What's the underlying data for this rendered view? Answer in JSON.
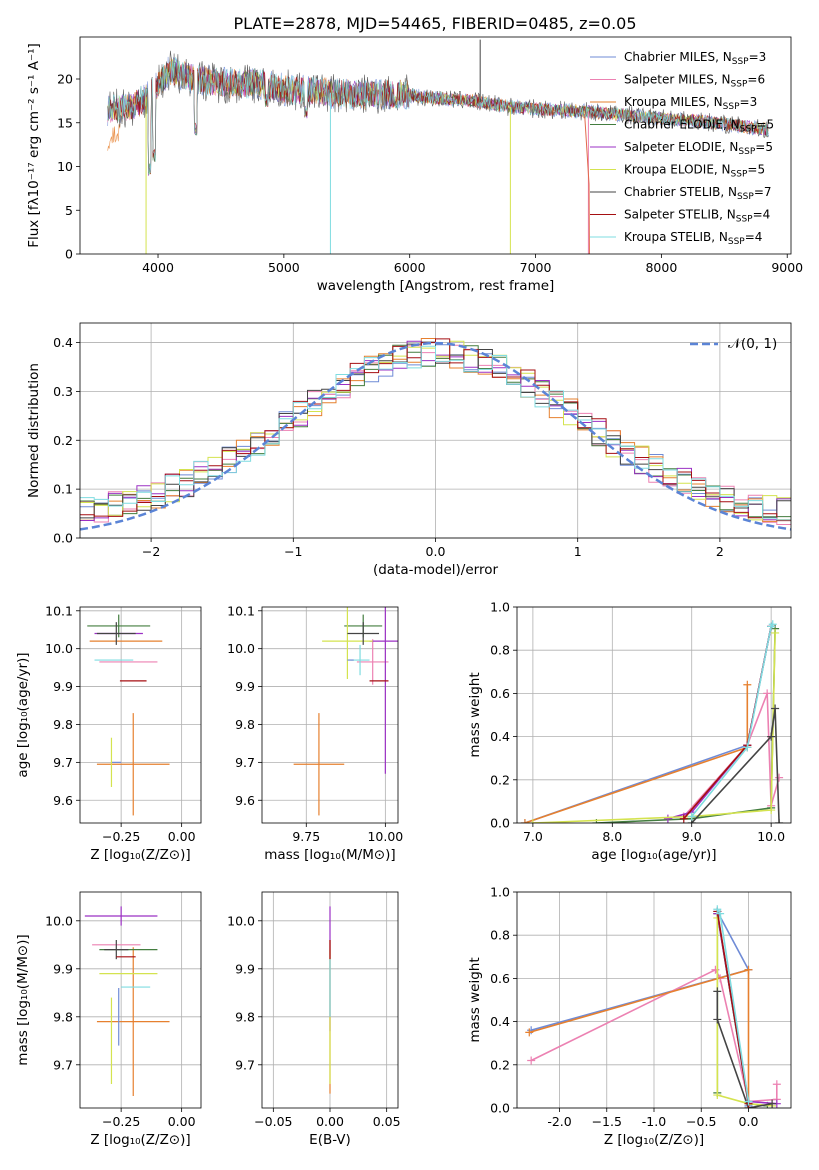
{
  "figure": {
    "title": "PLATE=2878, MJD=54465, FIBERID=0485, z=0.05",
    "models": [
      {
        "name": "Chabrier MILES",
        "nssp": "3",
        "color": "#6f8bd6"
      },
      {
        "name": "Salpeter MILES",
        "nssp": "6",
        "color": "#ec81b2"
      },
      {
        "name": "Kroupa MILES",
        "nssp": "3",
        "color": "#e6802f"
      },
      {
        "name": "Chabrier ELODIE",
        "nssp": "5",
        "color": "#437d3f"
      },
      {
        "name": "Salpeter ELODIE",
        "nssp": "5",
        "color": "#9b30c4"
      },
      {
        "name": "Kroupa ELODIE",
        "nssp": "5",
        "color": "#d4e34f"
      },
      {
        "name": "Chabrier STELIB",
        "nssp": "7",
        "color": "#444444"
      },
      {
        "name": "Salpeter STELIB",
        "nssp": "4",
        "color": "#a50f12"
      },
      {
        "name": "Kroupa STELIB",
        "nssp": "4",
        "color": "#7fdce0"
      }
    ],
    "nssp_label": "N",
    "nssp_sub": "SSP"
  },
  "chart_data": [
    {
      "id": "spectrum",
      "type": "line",
      "xlabel": "wavelength [Angstrom, rest frame]",
      "ylabel": "Flux [fλ10⁻¹⁷ erg cm⁻² s⁻¹ A⁻¹]",
      "xlim": [
        3380,
        9030
      ],
      "ylim": [
        0,
        24.8
      ],
      "xticks": [
        4000,
        5000,
        6000,
        7000,
        8000,
        9000
      ],
      "yticks": [
        0,
        5,
        10,
        15,
        20
      ],
      "data_range": [
        3600,
        8850
      ],
      "continuum": [
        [
          3600,
          16.5
        ],
        [
          3800,
          16.8
        ],
        [
          3950,
          18.5
        ],
        [
          4100,
          21
        ],
        [
          4300,
          20
        ],
        [
          4500,
          19.5
        ],
        [
          4800,
          19.5
        ],
        [
          5000,
          18.8
        ],
        [
          5300,
          18.5
        ],
        [
          5600,
          18.2
        ],
        [
          5900,
          18.3
        ],
        [
          6200,
          17.8
        ],
        [
          6500,
          17.5
        ],
        [
          6800,
          16.8
        ],
        [
          7100,
          16.5
        ],
        [
          7400,
          16.3
        ],
        [
          7700,
          15.9
        ],
        [
          8000,
          15.5
        ],
        [
          8300,
          15.2
        ],
        [
          8600,
          14.7
        ],
        [
          8850,
          14.2
        ]
      ],
      "dips": [
        [
          3934,
          8.9
        ],
        [
          3969,
          10.5
        ],
        [
          4300,
          13.5
        ],
        [
          4861,
          16.8
        ],
        [
          5175,
          15.5
        ],
        [
          5890,
          16.5
        ],
        [
          6563,
          22.0
        ]
      ],
      "spikes": [
        [
          5370,
          0
        ],
        [
          3905,
          0
        ],
        [
          6800,
          0
        ],
        [
          7420,
          0
        ],
        [
          6560,
          24.5
        ]
      ]
    },
    {
      "id": "residual",
      "type": "histogram",
      "xlabel": "(data-model)/error",
      "ylabel": "Normed distribution",
      "xlim": [
        -2.5,
        2.5
      ],
      "ylim": [
        0,
        0.44
      ],
      "xticks": [
        -2,
        -1,
        0,
        1,
        2
      ],
      "yticks": [
        0.0,
        0.1,
        0.2,
        0.3,
        0.4
      ],
      "legend": "𝒩(0, 1)",
      "bin_width": 0.1,
      "base_curve": "gaussian"
    },
    {
      "id": "age-vs-Z",
      "type": "errorbar",
      "xlabel": "Z [log₁₀(Z/Z⊙)]",
      "ylabel": "age  [log₁₀(age/yr)]",
      "xlim": [
        -0.42,
        0.08
      ],
      "ylim": [
        9.54,
        10.11
      ],
      "xticks": [
        -0.25,
        0.0
      ],
      "yticks": [
        9.6,
        9.7,
        9.8,
        9.9,
        10.0,
        10.1
      ],
      "points": [
        {
          "m": 0,
          "x": -0.27,
          "y": 9.7,
          "xe": 0.02,
          "ye": 0.0
        },
        {
          "m": 1,
          "x": -0.22,
          "y": 9.965,
          "xe": 0.12,
          "ye": 0.0
        },
        {
          "m": 2,
          "x": -0.2,
          "y": 9.695,
          "xe": 0.15,
          "ye": 0.135
        },
        {
          "m": 2,
          "x": -0.23,
          "y": 10.02,
          "xe": 0.15,
          "ye": 0.0
        },
        {
          "m": 3,
          "x": -0.26,
          "y": 10.06,
          "xe": 0.13,
          "ye": 0.03
        },
        {
          "m": 4,
          "x": -0.26,
          "y": 10.04,
          "xe": 0.1,
          "ye": 0.0
        },
        {
          "m": 5,
          "x": -0.29,
          "y": 9.7,
          "xe": 0.0,
          "ye": 0.065
        },
        {
          "m": 6,
          "x": -0.27,
          "y": 10.04,
          "xe": 0.08,
          "ye": 0.03
        },
        {
          "m": 7,
          "x": -0.2,
          "y": 9.915,
          "xe": 0.055,
          "ye": 0.0
        },
        {
          "m": 8,
          "x": -0.28,
          "y": 9.97,
          "xe": 0.08,
          "ye": 0.0
        }
      ]
    },
    {
      "id": "age-vs-mass",
      "type": "errorbar",
      "xlabel": "mass [log₁₀(M/M⊙)]",
      "ylabel": "",
      "xlim": [
        9.61,
        10.04
      ],
      "ylim": [
        9.54,
        10.11
      ],
      "xticks": [
        9.75,
        10.0
      ],
      "yticks": [
        9.6,
        9.7,
        9.8,
        9.9,
        10.0,
        10.1
      ],
      "points": [
        {
          "m": 2,
          "x": 9.79,
          "y": 9.695,
          "xe": 0.08,
          "ye": 0.135
        },
        {
          "m": 1,
          "x": 9.96,
          "y": 9.965,
          "xe": 0.05,
          "ye": 0.06
        },
        {
          "m": 3,
          "x": 9.93,
          "y": 10.06,
          "xe": 0.06,
          "ye": 0.03
        },
        {
          "m": 4,
          "x": 10.0,
          "y": 10.02,
          "xe": 0.05,
          "ye": 0.35
        },
        {
          "m": 5,
          "x": 9.88,
          "y": 10.02,
          "xe": 0.08,
          "ye": 0.1
        },
        {
          "m": 6,
          "x": 9.93,
          "y": 10.04,
          "xe": 0.05,
          "ye": 0.03
        },
        {
          "m": 7,
          "x": 9.98,
          "y": 9.915,
          "xe": 0.03,
          "ye": 0.0
        },
        {
          "m": 8,
          "x": 9.92,
          "y": 9.97,
          "xe": 0.03,
          "ye": 0.04
        },
        {
          "m": 0,
          "x": 9.89,
          "y": 9.97,
          "xe": 0.01,
          "ye": 0.0
        }
      ]
    },
    {
      "id": "weight-vs-age",
      "type": "line",
      "xlabel": "age  [log₁₀(age/yr)]",
      "ylabel": "mass weight",
      "xlim": [
        6.8,
        10.25
      ],
      "ylim": [
        0,
        1.0
      ],
      "xticks": [
        7,
        8,
        9,
        10
      ],
      "yticks": [
        0.0,
        0.2,
        0.4,
        0.6,
        0.8,
        1.0
      ],
      "series": [
        {
          "m": 0,
          "x": [
            6.9,
            9.7,
            10.0
          ],
          "y": [
            0.0,
            0.36,
            0.91
          ]
        },
        {
          "m": 1,
          "x": [
            8.9,
            9.7,
            9.95,
            10.0,
            10.1
          ],
          "y": [
            0.03,
            0.36,
            0.6,
            0.08,
            0.21
          ]
        },
        {
          "m": 2,
          "x": [
            6.9,
            9.7,
            9.7
          ],
          "y": [
            0.0,
            0.35,
            0.64
          ]
        },
        {
          "m": 3,
          "x": [
            7.8,
            9.0,
            10.0,
            10.05
          ],
          "y": [
            0.0,
            0.02,
            0.07,
            0.9
          ]
        },
        {
          "m": 4,
          "x": [
            8.7,
            9.0,
            9.7,
            10.0
          ],
          "y": [
            0.02,
            0.05,
            0.36,
            0.91
          ]
        },
        {
          "m": 5,
          "x": [
            7.0,
            9.0,
            10.0,
            10.05
          ],
          "y": [
            0.0,
            0.03,
            0.06,
            0.88
          ]
        },
        {
          "m": 6,
          "x": [
            9.0,
            10.0,
            10.05,
            10.1
          ],
          "y": [
            0.0,
            0.4,
            0.53,
            0.0
          ]
        },
        {
          "m": 7,
          "x": [
            8.9,
            9.7,
            10.0
          ],
          "y": [
            0.02,
            0.36,
            0.91
          ]
        },
        {
          "m": 8,
          "x": [
            9.0,
            9.7,
            10.0,
            10.02
          ],
          "y": [
            0.03,
            0.35,
            0.91,
            0.92
          ]
        }
      ]
    },
    {
      "id": "mass-vs-Z",
      "type": "errorbar",
      "xlabel": "Z [log₁₀(Z/Z⊙)]",
      "ylabel": "mass [log₁₀(M/M⊙)]",
      "xlim": [
        -0.42,
        0.08
      ],
      "ylim": [
        9.61,
        10.06
      ],
      "xticks": [
        -0.25,
        0.0
      ],
      "yticks": [
        9.7,
        9.8,
        9.9,
        10.0
      ],
      "points": [
        {
          "m": 2,
          "x": -0.2,
          "y": 9.79,
          "xe": 0.15,
          "ye": 0.155
        },
        {
          "m": 1,
          "x": -0.27,
          "y": 9.95,
          "xe": 0.1,
          "ye": 0.0
        },
        {
          "m": 3,
          "x": -0.22,
          "y": 9.94,
          "xe": 0.12,
          "ye": 0.0
        },
        {
          "m": 4,
          "x": -0.25,
          "y": 10.01,
          "xe": 0.15,
          "ye": 0.02
        },
        {
          "m": 5,
          "x": -0.22,
          "y": 9.89,
          "xe": 0.12,
          "ye": 0.0
        },
        {
          "m": 5,
          "x": -0.29,
          "y": 9.75,
          "xe": 0.0,
          "ye": 0.09
        },
        {
          "m": 6,
          "x": -0.27,
          "y": 9.94,
          "xe": 0.05,
          "ye": 0.02
        },
        {
          "m": 7,
          "x": -0.23,
          "y": 9.925,
          "xe": 0.04,
          "ye": 0.0
        },
        {
          "m": 8,
          "x": -0.19,
          "y": 9.862,
          "xe": 0.06,
          "ye": 0.0
        },
        {
          "m": 0,
          "x": -0.26,
          "y": 9.8,
          "xe": 0.0,
          "ye": 0.06
        }
      ]
    },
    {
      "id": "mass-vs-ebv",
      "type": "errorbar",
      "xlabel": "E(B-V)",
      "ylabel": "",
      "xlim": [
        -0.06,
        0.06
      ],
      "ylim": [
        9.61,
        10.06
      ],
      "xticks": [
        -0.05,
        0.0,
        0.05
      ],
      "yticks": [
        9.7,
        9.8,
        9.9,
        10.0
      ],
      "points": [
        {
          "m": 4,
          "x": 0.0,
          "y": 9.9,
          "xe": 0.0,
          "ye": 0.13
        },
        {
          "m": 2,
          "x": 0.0,
          "y": 9.8,
          "xe": 0.0,
          "ye": 0.16
        },
        {
          "m": 5,
          "x": 0.0,
          "y": 9.8,
          "xe": 0.0,
          "ye": 0.14
        },
        {
          "m": 7,
          "x": 0.0,
          "y": 9.94,
          "xe": 0.0,
          "ye": 0.02
        },
        {
          "m": 8,
          "x": 0.0,
          "y": 9.86,
          "xe": 0.0,
          "ye": 0.06
        }
      ]
    },
    {
      "id": "weight-vs-Z",
      "type": "line",
      "xlabel": "Z [log₁₀(Z/Z⊙)]",
      "ylabel": "mass weight",
      "xlim": [
        -2.45,
        0.45
      ],
      "ylim": [
        0,
        1.0
      ],
      "xticks": [
        -2.0,
        -1.5,
        -1.0,
        -0.5,
        0.0
      ],
      "yticks": [
        0.0,
        0.2,
        0.4,
        0.6,
        0.8,
        1.0
      ],
      "series": [
        {
          "m": 0,
          "x": [
            -2.3,
            0.0,
            -0.33,
            0.0
          ],
          "y": [
            0.36,
            0.64,
            0.91,
            0.01
          ]
        },
        {
          "m": 1,
          "x": [
            -2.3,
            -0.35,
            -0.3,
            0.0,
            0.3,
            0.3
          ],
          "y": [
            0.22,
            0.64,
            0.6,
            0.03,
            0.04,
            0.11
          ]
        },
        {
          "m": 2,
          "x": [
            -2.32,
            0.0,
            0.0
          ],
          "y": [
            0.35,
            0.64,
            0.0
          ]
        },
        {
          "m": 3,
          "x": [
            -0.33,
            -0.33,
            0.0,
            0.2
          ],
          "y": [
            0.07,
            0.9,
            0.02,
            0.01
          ]
        },
        {
          "m": 4,
          "x": [
            -0.33,
            0.0,
            0.3
          ],
          "y": [
            0.9,
            0.03,
            0.02
          ]
        },
        {
          "m": 5,
          "x": [
            -0.33,
            -0.33,
            0.0,
            0.25
          ],
          "y": [
            0.88,
            0.06,
            0.02,
            0.01
          ]
        },
        {
          "m": 6,
          "x": [
            -0.33,
            -0.33,
            0.0,
            0.25
          ],
          "y": [
            0.54,
            0.41,
            0.0,
            0.02
          ]
        },
        {
          "m": 7,
          "x": [
            -0.33,
            0.0
          ],
          "y": [
            0.91,
            0.02
          ]
        },
        {
          "m": 8,
          "x": [
            -0.33,
            -0.3,
            0.0
          ],
          "y": [
            0.92,
            0.9,
            0.03
          ]
        }
      ]
    }
  ]
}
